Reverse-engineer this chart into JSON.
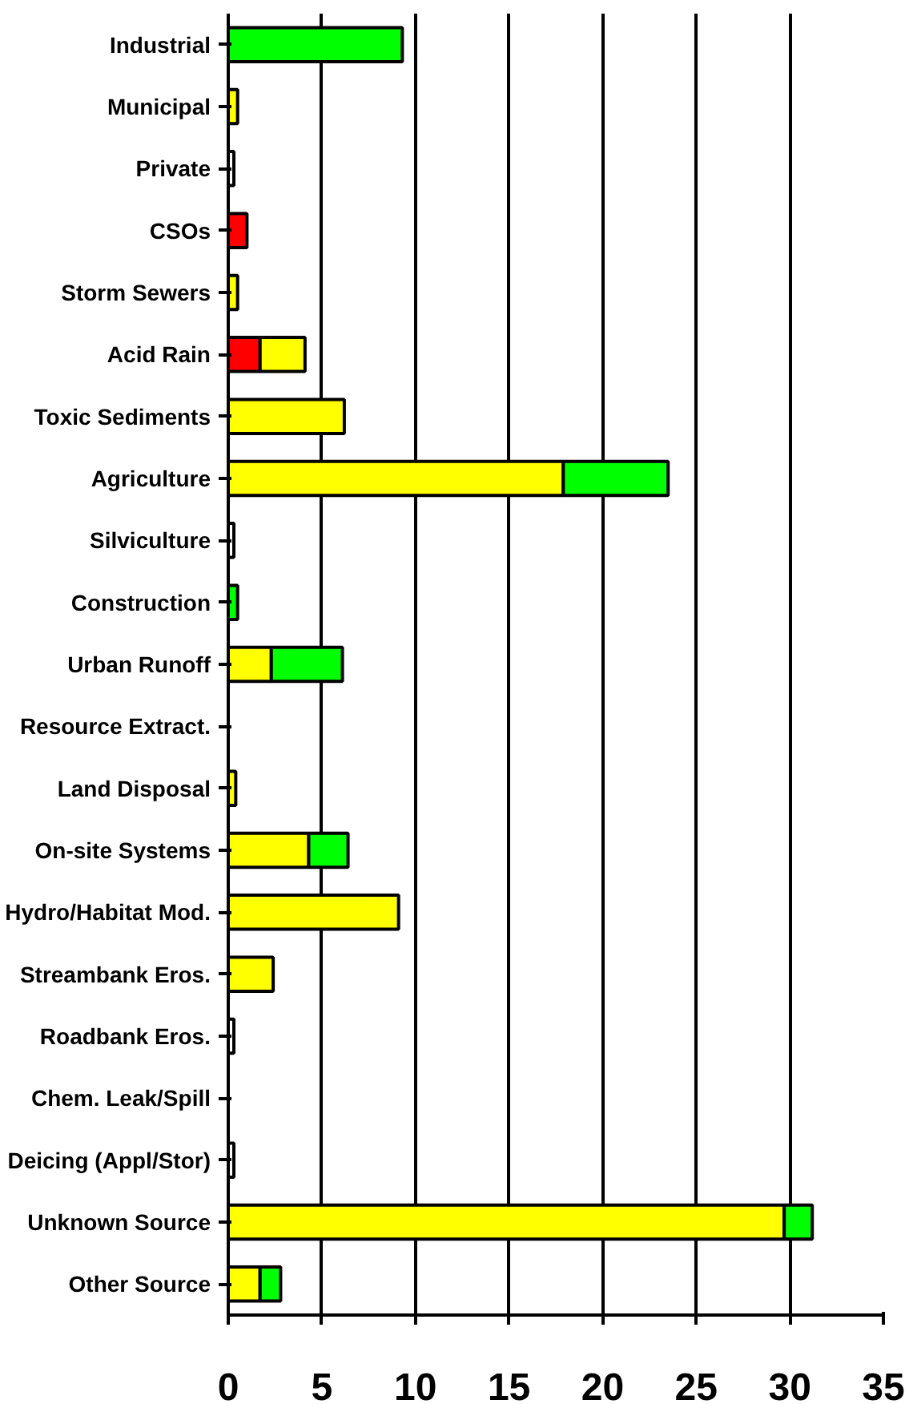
{
  "chart_data": {
    "type": "bar",
    "orientation": "horizontal",
    "stacked": true,
    "categories": [
      "Industrial",
      "Municipal",
      "Private",
      "CSOs",
      "Storm Sewers",
      "Acid Rain",
      "Toxic Sediments",
      "Agriculture",
      "Silviculture",
      "Construction",
      "Urban Runoff",
      "Resource Extract.",
      "Land Disposal",
      "On-site Systems",
      "Hydro/Habitat Mod.",
      "Streambank Eros.",
      "Roadbank Eros.",
      "Chem. Leak/Spill",
      "Deicing (Appl/Stor)",
      "Unknown Source",
      "Other Source"
    ],
    "series": [
      {
        "color": "#ff0000",
        "values": [
          null,
          null,
          null,
          1.0,
          null,
          1.7,
          null,
          null,
          null,
          null,
          null,
          null,
          null,
          null,
          null,
          null,
          null,
          null,
          null,
          null,
          null
        ]
      },
      {
        "color": "#ffff00",
        "values": [
          null,
          0.5,
          null,
          null,
          0.5,
          2.4,
          6.2,
          17.9,
          null,
          null,
          2.3,
          null,
          0.4,
          4.3,
          9.1,
          2.4,
          null,
          null,
          null,
          29.7,
          1.7
        ]
      },
      {
        "color": "#00ff00",
        "values": [
          9.3,
          null,
          null,
          null,
          null,
          null,
          null,
          5.6,
          null,
          0.5,
          3.8,
          null,
          null,
          2.1,
          null,
          null,
          null,
          null,
          null,
          1.5,
          1.1
        ]
      },
      {
        "color": "#ffffff",
        "values": [
          null,
          null,
          0.3,
          null,
          null,
          null,
          null,
          null,
          0.3,
          null,
          null,
          null,
          null,
          null,
          null,
          null,
          0.3,
          null,
          0.3,
          null,
          null
        ]
      }
    ],
    "xlim": [
      0,
      35
    ],
    "xticks": [
      0,
      5,
      10,
      15,
      20,
      25,
      30,
      35
    ],
    "grid": "x"
  }
}
